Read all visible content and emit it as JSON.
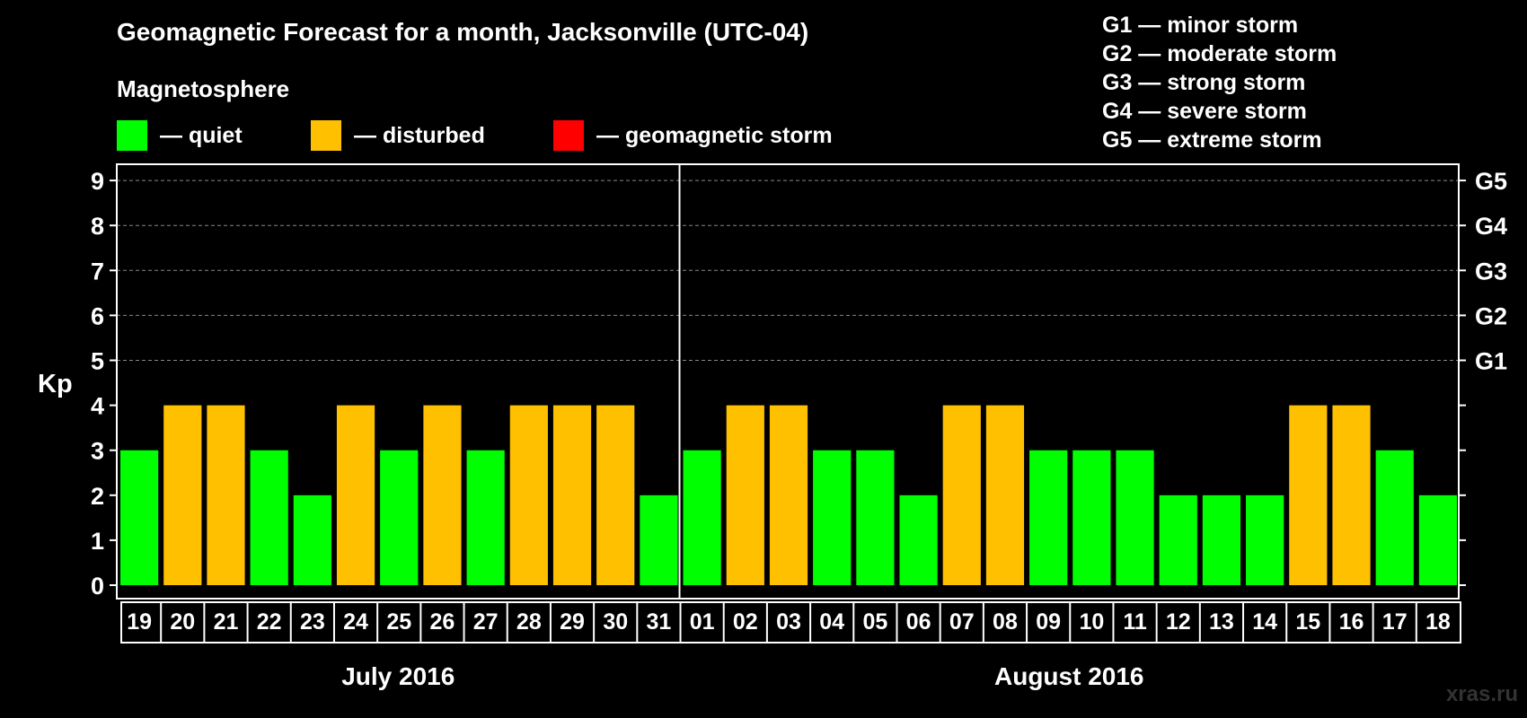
{
  "chart_data": {
    "type": "bar",
    "title": "Geomagnetic Forecast for a month, Jacksonville (UTC-04)",
    "subtitle": "Magnetosphere",
    "ylabel": "Kp",
    "ylim": [
      0,
      9
    ],
    "yticks": [
      "0",
      "1",
      "2",
      "3",
      "4",
      "5",
      "6",
      "7",
      "8",
      "9"
    ],
    "right_labels": [
      {
        "kp": 5,
        "label": "G1"
      },
      {
        "kp": 6,
        "label": "G2"
      },
      {
        "kp": 7,
        "label": "G3"
      },
      {
        "kp": 8,
        "label": "G4"
      },
      {
        "kp": 9,
        "label": "G5"
      }
    ],
    "months": [
      {
        "label": "July 2016",
        "start": 0,
        "count": 13
      },
      {
        "label": "August 2016",
        "start": 13,
        "count": 18
      }
    ],
    "categories": [
      "19",
      "20",
      "21",
      "22",
      "23",
      "24",
      "25",
      "26",
      "27",
      "28",
      "29",
      "30",
      "31",
      "01",
      "02",
      "03",
      "04",
      "05",
      "06",
      "07",
      "08",
      "09",
      "10",
      "11",
      "12",
      "13",
      "14",
      "15",
      "16",
      "17",
      "18"
    ],
    "values": [
      3,
      4,
      4,
      3,
      2,
      4,
      3,
      4,
      3,
      4,
      4,
      4,
      2,
      3,
      4,
      4,
      3,
      3,
      2,
      4,
      4,
      3,
      3,
      3,
      2,
      2,
      2,
      4,
      4,
      3,
      2
    ],
    "legend": [
      {
        "label": "— quiet",
        "color": "#00ff00"
      },
      {
        "label": "— disturbed",
        "color": "#ffc000"
      },
      {
        "label": "— geomagnetic storm",
        "color": "#ff0000"
      }
    ],
    "storm_scale": [
      "G1 — minor storm",
      "G2 — moderate storm",
      "G3 — strong storm",
      "G4 — severe storm",
      "G5 — extreme storm"
    ]
  },
  "colors": {
    "quiet": "#00ff00",
    "disturbed": "#ffc000",
    "storm": "#ff0000"
  },
  "watermark": "xras.ru"
}
